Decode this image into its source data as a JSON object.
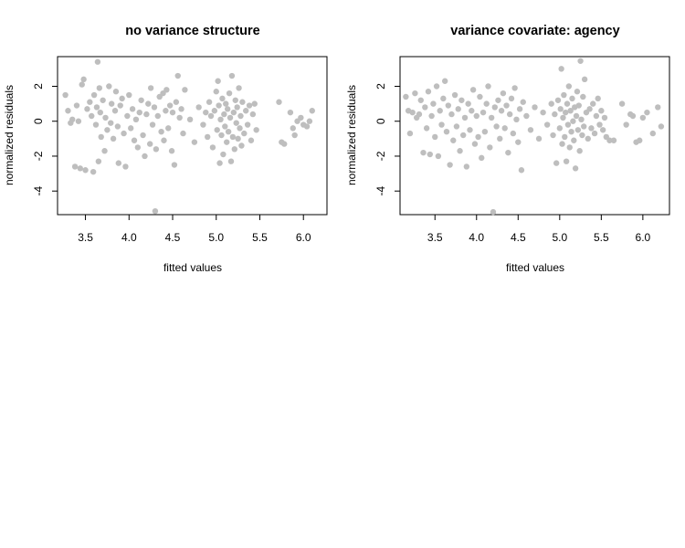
{
  "colors": {
    "point": "#bebebe",
    "axis": "#000000",
    "background": "#ffffff"
  },
  "chart_data": [
    {
      "type": "scatter",
      "title": "no variance structure",
      "xlabel": "fitted values",
      "ylabel": "normalized residuals",
      "xlim": [
        3.18,
        6.27
      ],
      "ylim": [
        -5.35,
        3.7
      ],
      "xticks": [
        3.5,
        4.0,
        4.5,
        5.0,
        5.5,
        6.0
      ],
      "xtick_labels": [
        "3.5",
        "4.0",
        "4.5",
        "5.0",
        "5.5",
        "6.0"
      ],
      "yticks": [
        -4,
        -2,
        0,
        2
      ],
      "ytick_labels": [
        "-4",
        "-2",
        "0",
        "2"
      ],
      "grid": false,
      "points": [
        [
          3.27,
          1.5
        ],
        [
          3.3,
          0.6
        ],
        [
          3.33,
          -0.1
        ],
        [
          3.35,
          0.1
        ],
        [
          3.38,
          -2.6
        ],
        [
          3.4,
          0.9
        ],
        [
          3.42,
          0.0
        ],
        [
          3.44,
          -2.7
        ],
        [
          3.46,
          2.1
        ],
        [
          3.48,
          2.4
        ],
        [
          3.5,
          -2.8
        ],
        [
          3.52,
          0.7
        ],
        [
          3.55,
          1.1
        ],
        [
          3.57,
          0.3
        ],
        [
          3.59,
          -2.9
        ],
        [
          3.6,
          1.5
        ],
        [
          3.62,
          -0.2
        ],
        [
          3.63,
          0.8
        ],
        [
          3.64,
          3.4
        ],
        [
          3.65,
          -2.3
        ],
        [
          3.66,
          1.9
        ],
        [
          3.67,
          0.5
        ],
        [
          3.68,
          -0.9
        ],
        [
          3.7,
          1.2
        ],
        [
          3.72,
          -1.7
        ],
        [
          3.73,
          0.2
        ],
        [
          3.75,
          -0.5
        ],
        [
          3.77,
          2.0
        ],
        [
          3.79,
          -0.1
        ],
        [
          3.8,
          1.0
        ],
        [
          3.82,
          -1.0
        ],
        [
          3.84,
          0.6
        ],
        [
          3.85,
          1.7
        ],
        [
          3.87,
          -0.3
        ],
        [
          3.88,
          -2.4
        ],
        [
          3.9,
          0.9
        ],
        [
          3.92,
          1.3
        ],
        [
          3.94,
          -0.7
        ],
        [
          3.96,
          -2.6
        ],
        [
          3.98,
          0.3
        ],
        [
          4.0,
          1.5
        ],
        [
          4.02,
          -0.4
        ],
        [
          4.04,
          0.7
        ],
        [
          4.06,
          -1.1
        ],
        [
          4.08,
          0.1
        ],
        [
          4.1,
          -1.5
        ],
        [
          4.12,
          0.5
        ],
        [
          4.14,
          1.2
        ],
        [
          4.16,
          -0.8
        ],
        [
          4.18,
          -2.0
        ],
        [
          4.2,
          0.4
        ],
        [
          4.22,
          1.0
        ],
        [
          4.24,
          -1.3
        ],
        [
          4.25,
          1.9
        ],
        [
          4.27,
          -0.2
        ],
        [
          4.29,
          0.8
        ],
        [
          4.3,
          -5.15
        ],
        [
          4.31,
          -1.6
        ],
        [
          4.33,
          0.3
        ],
        [
          4.35,
          1.4
        ],
        [
          4.37,
          -0.6
        ],
        [
          4.39,
          1.6
        ],
        [
          4.4,
          -1.1
        ],
        [
          4.42,
          0.6
        ],
        [
          4.43,
          1.8
        ],
        [
          4.45,
          -0.4
        ],
        [
          4.47,
          0.9
        ],
        [
          4.49,
          -1.7
        ],
        [
          4.5,
          0.5
        ],
        [
          4.52,
          -2.5
        ],
        [
          4.54,
          1.1
        ],
        [
          4.56,
          2.6
        ],
        [
          4.58,
          0.2
        ],
        [
          4.6,
          0.7
        ],
        [
          4.62,
          -0.7
        ],
        [
          4.64,
          1.8
        ],
        [
          4.7,
          0.1
        ],
        [
          4.75,
          -1.2
        ],
        [
          4.8,
          0.8
        ],
        [
          4.85,
          -0.2
        ],
        [
          4.88,
          0.5
        ],
        [
          4.9,
          -0.9
        ],
        [
          4.92,
          1.1
        ],
        [
          4.94,
          0.3
        ],
        [
          4.96,
          -1.5
        ],
        [
          4.98,
          0.6
        ],
        [
          5.0,
          1.7
        ],
        [
          5.01,
          -0.5
        ],
        [
          5.02,
          2.3
        ],
        [
          5.03,
          0.9
        ],
        [
          5.04,
          -2.4
        ],
        [
          5.05,
          0.1
        ],
        [
          5.06,
          -0.8
        ],
        [
          5.07,
          1.3
        ],
        [
          5.08,
          -1.9
        ],
        [
          5.09,
          0.4
        ],
        [
          5.1,
          -0.3
        ],
        [
          5.11,
          1.0
        ],
        [
          5.12,
          -1.2
        ],
        [
          5.13,
          0.7
        ],
        [
          5.14,
          -0.6
        ],
        [
          5.15,
          1.6
        ],
        [
          5.16,
          0.2
        ],
        [
          5.17,
          -2.3
        ],
        [
          5.18,
          2.6
        ],
        [
          5.19,
          -0.9
        ],
        [
          5.2,
          0.5
        ],
        [
          5.21,
          -1.6
        ],
        [
          5.22,
          1.2
        ],
        [
          5.23,
          -0.1
        ],
        [
          5.24,
          0.8
        ],
        [
          5.25,
          -1.0
        ],
        [
          5.26,
          1.9
        ],
        [
          5.27,
          -0.4
        ],
        [
          5.28,
          0.3
        ],
        [
          5.29,
          -1.4
        ],
        [
          5.3,
          1.1
        ],
        [
          5.32,
          -0.7
        ],
        [
          5.34,
          0.6
        ],
        [
          5.36,
          -0.2
        ],
        [
          5.38,
          0.9
        ],
        [
          5.4,
          -1.1
        ],
        [
          5.42,
          0.4
        ],
        [
          5.44,
          1.0
        ],
        [
          5.46,
          -0.5
        ],
        [
          5.72,
          1.1
        ],
        [
          5.75,
          -1.2
        ],
        [
          5.78,
          -1.3
        ],
        [
          5.85,
          0.5
        ],
        [
          5.88,
          -0.4
        ],
        [
          5.9,
          -0.8
        ],
        [
          5.93,
          0.0
        ],
        [
          5.97,
          0.2
        ],
        [
          6.0,
          -0.2
        ],
        [
          6.04,
          -0.3
        ],
        [
          6.07,
          0.0
        ],
        [
          6.1,
          0.6
        ]
      ]
    },
    {
      "type": "scatter",
      "title": "variance covariate: agency",
      "xlabel": "fitted values",
      "ylabel": "normalized residuals",
      "xlim": [
        3.08,
        6.32
      ],
      "ylim": [
        -5.35,
        3.7
      ],
      "xticks": [
        3.5,
        4.0,
        4.5,
        5.0,
        5.5,
        6.0
      ],
      "xtick_labels": [
        "3.5",
        "4.0",
        "4.5",
        "5.0",
        "5.5",
        "6.0"
      ],
      "yticks": [
        -4,
        -2,
        0,
        2
      ],
      "ytick_labels": [
        "-4",
        "-2",
        "0",
        "2"
      ],
      "grid": false,
      "points": [
        [
          3.15,
          1.4
        ],
        [
          3.18,
          0.6
        ],
        [
          3.2,
          -0.7
        ],
        [
          3.23,
          0.5
        ],
        [
          3.26,
          1.6
        ],
        [
          3.28,
          0.2
        ],
        [
          3.31,
          0.4
        ],
        [
          3.33,
          1.2
        ],
        [
          3.36,
          -1.8
        ],
        [
          3.38,
          0.8
        ],
        [
          3.4,
          -0.4
        ],
        [
          3.42,
          1.7
        ],
        [
          3.44,
          -1.9
        ],
        [
          3.46,
          0.3
        ],
        [
          3.48,
          1.0
        ],
        [
          3.5,
          -0.9
        ],
        [
          3.52,
          2.0
        ],
        [
          3.54,
          -2.0
        ],
        [
          3.56,
          0.6
        ],
        [
          3.58,
          -0.2
        ],
        [
          3.6,
          1.3
        ],
        [
          3.62,
          2.3
        ],
        [
          3.64,
          -0.6
        ],
        [
          3.66,
          0.9
        ],
        [
          3.68,
          -2.5
        ],
        [
          3.7,
          0.4
        ],
        [
          3.72,
          -1.1
        ],
        [
          3.74,
          1.5
        ],
        [
          3.76,
          -0.3
        ],
        [
          3.78,
          0.7
        ],
        [
          3.8,
          -1.7
        ],
        [
          3.82,
          1.2
        ],
        [
          3.84,
          -0.8
        ],
        [
          3.86,
          0.2
        ],
        [
          3.88,
          -2.6
        ],
        [
          3.9,
          1.0
        ],
        [
          3.92,
          -0.5
        ],
        [
          3.94,
          0.6
        ],
        [
          3.96,
          1.8
        ],
        [
          3.98,
          -1.3
        ],
        [
          4.0,
          0.3
        ],
        [
          4.02,
          -0.9
        ],
        [
          4.04,
          1.4
        ],
        [
          4.06,
          -2.1
        ],
        [
          4.08,
          0.5
        ],
        [
          4.1,
          -0.6
        ],
        [
          4.12,
          1.0
        ],
        [
          4.14,
          2.0
        ],
        [
          4.16,
          -1.5
        ],
        [
          4.18,
          0.2
        ],
        [
          4.2,
          -5.2
        ],
        [
          4.22,
          0.8
        ],
        [
          4.24,
          -0.3
        ],
        [
          4.26,
          1.2
        ],
        [
          4.28,
          -1.0
        ],
        [
          4.3,
          0.6
        ],
        [
          4.32,
          1.6
        ],
        [
          4.34,
          -0.4
        ],
        [
          4.36,
          0.9
        ],
        [
          4.38,
          -1.8
        ],
        [
          4.4,
          0.4
        ],
        [
          4.42,
          1.3
        ],
        [
          4.44,
          -0.7
        ],
        [
          4.46,
          1.9
        ],
        [
          4.48,
          0.1
        ],
        [
          4.5,
          -1.2
        ],
        [
          4.52,
          0.7
        ],
        [
          4.54,
          -2.8
        ],
        [
          4.56,
          1.1
        ],
        [
          4.6,
          0.3
        ],
        [
          4.65,
          -0.5
        ],
        [
          4.7,
          0.8
        ],
        [
          4.75,
          -1.0
        ],
        [
          4.8,
          0.5
        ],
        [
          4.85,
          -0.2
        ],
        [
          4.9,
          1.0
        ],
        [
          4.92,
          -0.8
        ],
        [
          4.94,
          0.4
        ],
        [
          4.96,
          -2.4
        ],
        [
          4.98,
          1.2
        ],
        [
          5.0,
          -0.4
        ],
        [
          5.01,
          0.7
        ],
        [
          5.02,
          3.0
        ],
        [
          5.03,
          -1.3
        ],
        [
          5.04,
          0.2
        ],
        [
          5.05,
          1.5
        ],
        [
          5.06,
          -0.9
        ],
        [
          5.07,
          0.5
        ],
        [
          5.08,
          -2.3
        ],
        [
          5.09,
          1.0
        ],
        [
          5.1,
          -0.2
        ],
        [
          5.11,
          2.0
        ],
        [
          5.12,
          -1.5
        ],
        [
          5.13,
          0.6
        ],
        [
          5.14,
          -0.6
        ],
        [
          5.15,
          1.3
        ],
        [
          5.16,
          0.0
        ],
        [
          5.17,
          -1.1
        ],
        [
          5.18,
          0.8
        ],
        [
          5.19,
          -2.7
        ],
        [
          5.2,
          0.3
        ],
        [
          5.21,
          1.7
        ],
        [
          5.22,
          -0.5
        ],
        [
          5.23,
          0.9
        ],
        [
          5.24,
          -1.7
        ],
        [
          5.25,
          3.45
        ],
        [
          5.26,
          0.1
        ],
        [
          5.27,
          -0.8
        ],
        [
          5.28,
          1.4
        ],
        [
          5.29,
          -0.3
        ],
        [
          5.3,
          2.4
        ],
        [
          5.32,
          0.5
        ],
        [
          5.34,
          -1.0
        ],
        [
          5.36,
          0.7
        ],
        [
          5.38,
          -0.4
        ],
        [
          5.4,
          1.0
        ],
        [
          5.42,
          -0.7
        ],
        [
          5.44,
          0.3
        ],
        [
          5.46,
          1.3
        ],
        [
          5.48,
          -0.2
        ],
        [
          5.5,
          0.6
        ],
        [
          5.52,
          -0.5
        ],
        [
          5.54,
          0.2
        ],
        [
          5.56,
          -0.9
        ],
        [
          5.6,
          -1.1
        ],
        [
          5.65,
          -1.1
        ],
        [
          5.75,
          1.0
        ],
        [
          5.8,
          -0.2
        ],
        [
          5.85,
          0.4
        ],
        [
          5.88,
          0.3
        ],
        [
          5.92,
          -1.2
        ],
        [
          5.96,
          -1.1
        ],
        [
          6.0,
          0.2
        ],
        [
          6.05,
          0.5
        ],
        [
          6.12,
          -0.7
        ],
        [
          6.18,
          0.8
        ],
        [
          6.22,
          -0.3
        ]
      ]
    }
  ]
}
